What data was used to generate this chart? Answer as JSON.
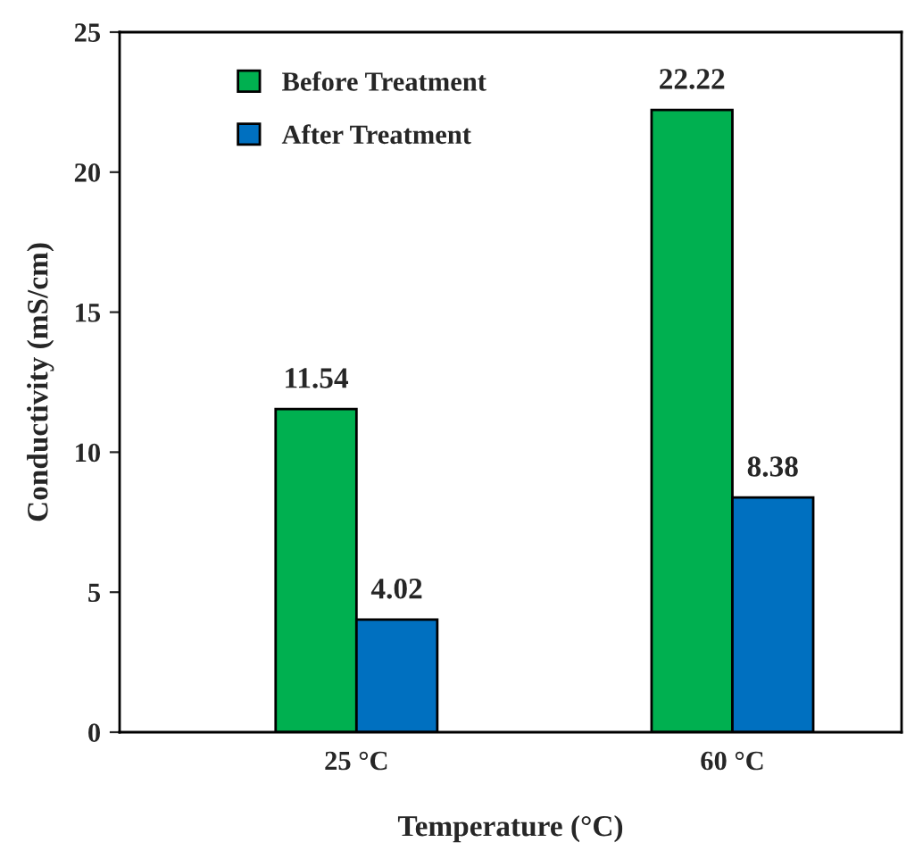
{
  "chart_data": {
    "type": "bar",
    "xlabel": "Temperature (°C)",
    "ylabel": "Conductivity (mS/cm)",
    "categories": [
      "25 °C",
      "60 °C"
    ],
    "series": [
      {
        "name": "Before Treatment",
        "color": "#00b050",
        "values": [
          11.54,
          22.22
        ]
      },
      {
        "name": "After Treatment",
        "color": "#0070c0",
        "values": [
          4.02,
          8.38
        ]
      }
    ],
    "ylim": [
      0,
      25
    ],
    "yticks": [
      0,
      5,
      10,
      15,
      20,
      25
    ],
    "grid": false,
    "legend": "top left",
    "data_labels": true
  }
}
